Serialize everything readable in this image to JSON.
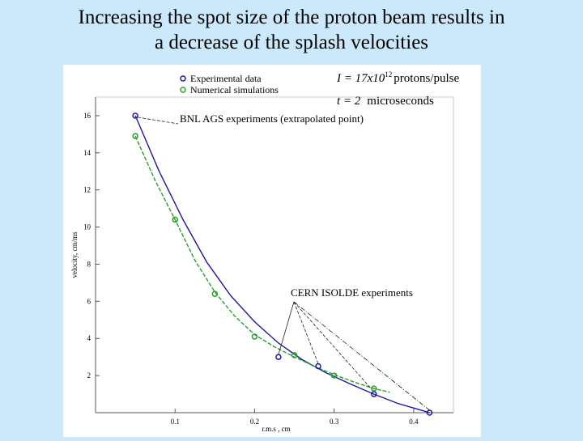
{
  "slide": {
    "title_line1": "Increasing the spot size of the proton beam results in",
    "title_line2": "a decrease of the splash velocities"
  },
  "chart_data": {
    "type": "scatter",
    "xlabel": "r.m.s , cm",
    "ylabel": "velocity, cm/ms",
    "xlim": [
      0,
      0.45
    ],
    "ylim": [
      0,
      17
    ],
    "x_ticks": [
      {
        "value": 0.1,
        "label": "0.1"
      },
      {
        "value": 0.2,
        "label": "0.2"
      },
      {
        "value": 0.3,
        "label": "0.3"
      },
      {
        "value": 0.4,
        "label": "0.4"
      }
    ],
    "y_ticks": [
      {
        "value": 2,
        "label": "2"
      },
      {
        "value": 4,
        "label": "4"
      },
      {
        "value": 6,
        "label": "6"
      },
      {
        "value": 8,
        "label": "8"
      },
      {
        "value": 10,
        "label": "10"
      },
      {
        "value": 12,
        "label": "12"
      },
      {
        "value": 14,
        "label": "14"
      },
      {
        "value": 16,
        "label": "16"
      }
    ],
    "series": [
      {
        "name": "Experimental data",
        "color": "#1a1aa0",
        "points": [
          [
            0.05,
            16.0
          ],
          [
            0.23,
            3.0
          ],
          [
            0.28,
            2.5
          ],
          [
            0.35,
            1.0
          ],
          [
            0.42,
            0.0
          ]
        ],
        "fit": [
          [
            0.05,
            16.0
          ],
          [
            0.08,
            13.0
          ],
          [
            0.11,
            10.4
          ],
          [
            0.14,
            8.1
          ],
          [
            0.17,
            6.3
          ],
          [
            0.2,
            4.9
          ],
          [
            0.23,
            3.75
          ],
          [
            0.26,
            2.85
          ],
          [
            0.29,
            2.15
          ],
          [
            0.32,
            1.55
          ],
          [
            0.35,
            1.0
          ],
          [
            0.38,
            0.5
          ],
          [
            0.42,
            0.0
          ]
        ]
      },
      {
        "name": "Numerical simulations",
        "color": "#2aa02a",
        "points": [
          [
            0.05,
            14.9
          ],
          [
            0.1,
            10.4
          ],
          [
            0.15,
            6.4
          ],
          [
            0.2,
            4.1
          ],
          [
            0.25,
            3.1
          ],
          [
            0.3,
            2.0
          ],
          [
            0.35,
            1.3
          ]
        ],
        "fit": [
          [
            0.05,
            14.9
          ],
          [
            0.075,
            12.5
          ],
          [
            0.1,
            10.4
          ],
          [
            0.125,
            8.2
          ],
          [
            0.15,
            6.5
          ],
          [
            0.175,
            5.2
          ],
          [
            0.2,
            4.2
          ],
          [
            0.225,
            3.55
          ],
          [
            0.25,
            3.0
          ],
          [
            0.275,
            2.5
          ],
          [
            0.3,
            2.05
          ],
          [
            0.325,
            1.65
          ],
          [
            0.35,
            1.3
          ],
          [
            0.37,
            1.1
          ]
        ]
      }
    ],
    "annotations": {
      "intensity_label": "I = 17x10",
      "intensity_exp": "12",
      "intensity_unit": "protons/pulse",
      "time_label": "t = 2",
      "time_unit": "microseconds",
      "bnl_label": "BNL AGS experiments (extrapolated point)",
      "bnl_points": [
        [
          0.05,
          16.0
        ]
      ],
      "cern_label": "CERN ISOLDE experiments",
      "cern_points": [
        [
          0.23,
          3.0
        ],
        [
          0.28,
          2.5
        ],
        [
          0.35,
          1.0
        ],
        [
          0.42,
          0.0
        ]
      ]
    }
  }
}
